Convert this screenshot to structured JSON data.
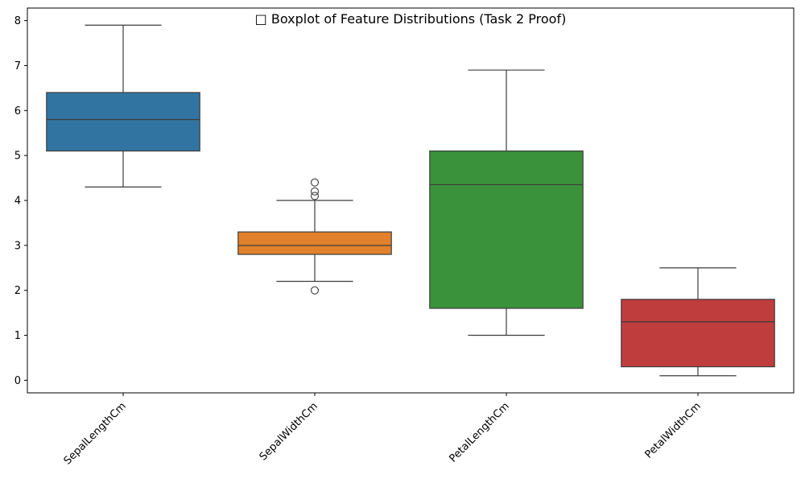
{
  "chart_data": {
    "type": "boxplot",
    "title": "□ Boxplot of Feature Distributions (Task 2 Proof)",
    "xlabel": "",
    "ylabel": "",
    "ylim": [
      -0.28,
      8.28
    ],
    "yticks": [
      0,
      1,
      2,
      3,
      4,
      5,
      6,
      7,
      8
    ],
    "grid": false,
    "categories": [
      "SepalLengthCm",
      "SepalWidthCm",
      "PetalLengthCm",
      "PetalWidthCm"
    ],
    "boxes": [
      {
        "category": "SepalLengthCm",
        "whisker_low": 4.3,
        "q1": 5.1,
        "median": 5.8,
        "q3": 6.4,
        "whisker_high": 7.9,
        "outliers": [],
        "color": "#3274a1"
      },
      {
        "category": "SepalWidthCm",
        "whisker_low": 2.2,
        "q1": 2.8,
        "median": 3.0,
        "q3": 3.3,
        "whisker_high": 4.0,
        "outliers": [
          2.0,
          4.1,
          4.2,
          4.4
        ],
        "color": "#e1812c"
      },
      {
        "category": "PetalLengthCm",
        "whisker_low": 1.0,
        "q1": 1.6,
        "median": 4.35,
        "q3": 5.1,
        "whisker_high": 6.9,
        "outliers": [],
        "color": "#3a923a"
      },
      {
        "category": "PetalWidthCm",
        "whisker_low": 0.1,
        "q1": 0.3,
        "median": 1.3,
        "q3": 1.8,
        "whisker_high": 2.5,
        "outliers": [],
        "color": "#c03d3e"
      }
    ]
  }
}
